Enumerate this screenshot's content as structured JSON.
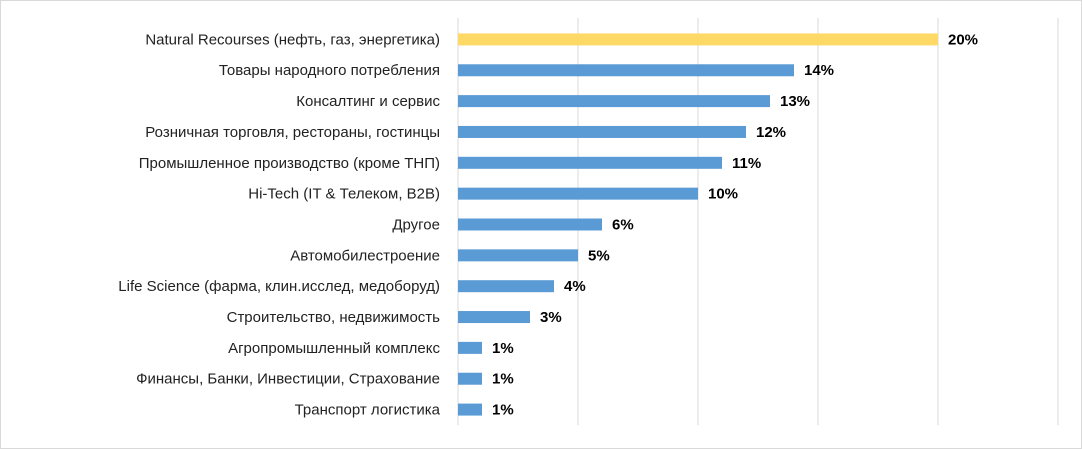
{
  "chart_data": {
    "type": "barh",
    "categories": [
      "Natural Recourses (нефть, газ, энергетика)",
      "Товары народного потребления",
      "Консалтинг и сервис",
      "Розничная торговля, рестораны, гостинцы",
      "Промышленное производство (кроме ТНП)",
      "Hi-Tech (IT & Телеком, B2B)",
      "Другое",
      "Автомобилестроение",
      "Life Science (фарма, клин.исслед, медоборуд)",
      "Строительство, недвижимость",
      "Агропромышленный комплекс",
      "Финансы, Банки, Инвестиции, Страхование",
      "Транспорт логистика"
    ],
    "values": [
      20,
      14,
      13,
      12,
      11,
      10,
      6,
      5,
      4,
      3,
      1,
      1,
      1
    ],
    "value_labels": [
      "20%",
      "14%",
      "13%",
      "12%",
      "11%",
      "10%",
      "6%",
      "5%",
      "4%",
      "3%",
      "1%",
      "1%",
      "1%"
    ],
    "colors": [
      "#FFD966",
      "#5B9BD5",
      "#5B9BD5",
      "#5B9BD5",
      "#5B9BD5",
      "#5B9BD5",
      "#5B9BD5",
      "#5B9BD5",
      "#5B9BD5",
      "#5B9BD5",
      "#5B9BD5",
      "#5B9BD5",
      "#5B9BD5"
    ],
    "xlim": [
      0,
      25
    ],
    "xticks": [
      0,
      5,
      10,
      15,
      20,
      25
    ],
    "grid": true
  }
}
